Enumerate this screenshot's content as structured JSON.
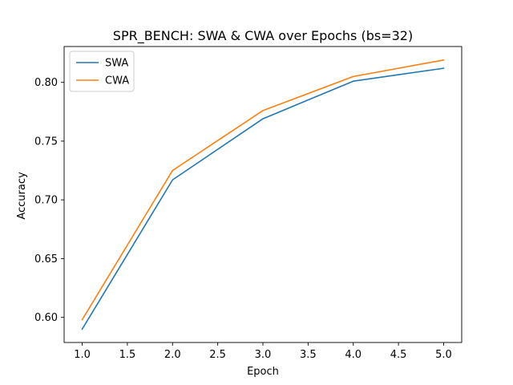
{
  "chart_data": {
    "type": "line",
    "title": "SPR_BENCH: SWA & CWA over Epochs (bs=32)",
    "xlabel": "Epoch",
    "ylabel": "Accuracy",
    "x": [
      1.0,
      2.0,
      3.0,
      4.0,
      5.0
    ],
    "xlim": [
      0.8,
      5.2
    ],
    "ylim": [
      0.5786,
      0.8305
    ],
    "xticks": [
      1.0,
      1.5,
      2.0,
      2.5,
      3.0,
      3.5,
      4.0,
      4.5,
      5.0
    ],
    "xtick_labels": [
      "1.0",
      "1.5",
      "2.0",
      "2.5",
      "3.0",
      "3.5",
      "4.0",
      "4.5",
      "5.0"
    ],
    "yticks": [
      0.6,
      0.65,
      0.7,
      0.75,
      0.8
    ],
    "ytick_labels": [
      "0.60",
      "0.65",
      "0.70",
      "0.75",
      "0.80"
    ],
    "grid": false,
    "legend_position": "upper-left",
    "series": [
      {
        "name": "SWA",
        "color": "#1f77b4",
        "values": [
          0.59,
          0.717,
          0.769,
          0.801,
          0.812
        ]
      },
      {
        "name": "CWA",
        "color": "#ff7f0e",
        "values": [
          0.598,
          0.725,
          0.776,
          0.805,
          0.819
        ]
      }
    ]
  }
}
